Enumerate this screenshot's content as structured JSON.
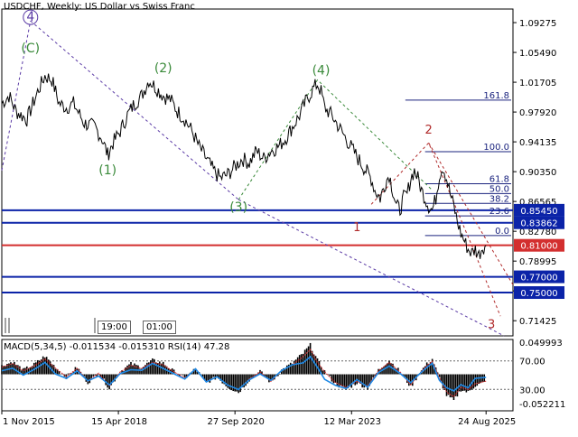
{
  "window": {
    "title": "USDCHF, Weekly:  US Dollar vs Swiss Franc",
    "time_tags": [
      "19:00",
      "01:00"
    ]
  },
  "colors": {
    "price": "#000000",
    "wave_primary": "#5a3aa5",
    "wave_minor": "#3a8a3a",
    "wave_current": "#b02a2a",
    "fib": "#1a237e",
    "support": "#0b23a8",
    "current_level": "#d32f2f",
    "macd_hist": "#000000",
    "macd_signal": "#d32f2f",
    "rsi": "#1e88e5",
    "tag_bg": "#0b23a8",
    "tag_text": "#ffffff"
  },
  "chart_data": {
    "type": "line",
    "title": "USDCHF, Weekly:  US Dollar vs Swiss Franc",
    "price_axis": {
      "ticks": [
        "1.09275",
        "1.05490",
        "1.01705",
        "0.97920",
        "0.94135",
        "0.90350",
        "0.86565",
        "0.82780",
        "0.78995",
        "0.75210",
        "0.71425"
      ],
      "range": [
        0.695,
        1.11
      ]
    },
    "time_axis": {
      "ticks": [
        "1 Nov 2015",
        "15 Apr 2018",
        "27 Sep 2020",
        "12 Mar 2023",
        "24 Aug 2025"
      ]
    },
    "price_path": [
      [
        0,
        0.99
      ],
      [
        4,
        1.0
      ],
      [
        8,
        0.98
      ],
      [
        14,
        0.97
      ],
      [
        20,
        1.005
      ],
      [
        24,
        1.025
      ],
      [
        28,
        1.02
      ],
      [
        32,
        0.99
      ],
      [
        36,
        0.985
      ],
      [
        40,
        0.99
      ],
      [
        46,
        0.965
      ],
      [
        52,
        0.96
      ],
      [
        56,
        0.945
      ],
      [
        59,
        0.925
      ],
      [
        62,
        0.94
      ],
      [
        66,
        0.955
      ],
      [
        70,
        0.975
      ],
      [
        74,
        0.99
      ],
      [
        78,
        1.0
      ],
      [
        82,
        1.02
      ],
      [
        86,
        1.01
      ],
      [
        90,
        1.0
      ],
      [
        94,
        0.995
      ],
      [
        98,
        0.98
      ],
      [
        102,
        0.97
      ],
      [
        106,
        0.955
      ],
      [
        110,
        0.935
      ],
      [
        114,
        0.92
      ],
      [
        118,
        0.905
      ],
      [
        122,
        0.895
      ],
      [
        126,
        0.9
      ],
      [
        130,
        0.91
      ],
      [
        134,
        0.92
      ],
      [
        138,
        0.915
      ],
      [
        142,
        0.93
      ],
      [
        146,
        0.92
      ],
      [
        150,
        0.93
      ],
      [
        154,
        0.935
      ],
      [
        158,
        0.945
      ],
      [
        162,
        0.96
      ],
      [
        166,
        0.975
      ],
      [
        170,
        0.995
      ],
      [
        174,
        1.01
      ],
      [
        176,
        1.015
      ],
      [
        178,
        1.005
      ],
      [
        180,
        0.985
      ],
      [
        184,
        0.975
      ],
      [
        188,
        0.96
      ],
      [
        192,
        0.945
      ],
      [
        196,
        0.93
      ],
      [
        200,
        0.915
      ],
      [
        203,
        0.905
      ],
      [
        206,
        0.895
      ],
      [
        208,
        0.88
      ],
      [
        211,
        0.87
      ],
      [
        214,
        0.89
      ],
      [
        216,
        0.9
      ],
      [
        218,
        0.88
      ],
      [
        220,
        0.86
      ],
      [
        222,
        0.855
      ],
      [
        224,
        0.87
      ],
      [
        226,
        0.875
      ],
      [
        228,
        0.895
      ],
      [
        230,
        0.905
      ],
      [
        232,
        0.895
      ],
      [
        234,
        0.88
      ],
      [
        236,
        0.87
      ],
      [
        238,
        0.86
      ],
      [
        240,
        0.855
      ],
      [
        242,
        0.87
      ],
      [
        244,
        0.9
      ],
      [
        246,
        0.91
      ],
      [
        248,
        0.895
      ],
      [
        250,
        0.875
      ],
      [
        252,
        0.86
      ],
      [
        254,
        0.84
      ],
      [
        256,
        0.825
      ],
      [
        258,
        0.815
      ],
      [
        260,
        0.805
      ],
      [
        262,
        0.8
      ],
      [
        264,
        0.805
      ],
      [
        266,
        0.798
      ],
      [
        268,
        0.808
      ],
      [
        270,
        0.81
      ]
    ],
    "wave_labels": [
      {
        "text": "4",
        "circled": true,
        "t": 16,
        "p": 1.095,
        "series": "primary"
      },
      {
        "text": "(C)",
        "t": 16,
        "p": 1.055,
        "series": "minor"
      },
      {
        "text": "(1)",
        "t": 59,
        "p": 0.9,
        "series": "minor"
      },
      {
        "text": "(2)",
        "t": 90,
        "p": 1.03,
        "series": "minor"
      },
      {
        "text": "(3)",
        "t": 132,
        "p": 0.853,
        "series": "minor"
      },
      {
        "text": "(4)",
        "t": 178,
        "p": 1.027,
        "series": "minor"
      },
      {
        "text": "1",
        "t": 198,
        "p": 0.828,
        "series": "current"
      },
      {
        "text": "2",
        "t": 238,
        "p": 0.952,
        "series": "current"
      },
      {
        "text": "3",
        "t": 273,
        "p": 0.705,
        "series": "current"
      }
    ],
    "fib_levels": [
      {
        "label": "161.8",
        "value": 0.9943
      },
      {
        "label": "100.0",
        "value": 0.9289
      },
      {
        "label": "61.8",
        "value": 0.8882
      },
      {
        "label": "50.0",
        "value": 0.8757
      },
      {
        "label": "38.2",
        "value": 0.8632
      },
      {
        "label": "23.6",
        "value": 0.8473
      },
      {
        "label": "0.0",
        "value": 0.8224
      }
    ],
    "levels": [
      {
        "label": "0.85450",
        "value": 0.8545,
        "kind": "support"
      },
      {
        "label": "0.83862",
        "value": 0.83862,
        "kind": "support"
      },
      {
        "label": "0.81000",
        "value": 0.81,
        "kind": "current"
      },
      {
        "label": "0.77000",
        "value": 0.77,
        "kind": "support"
      },
      {
        "label": "0.75000",
        "value": 0.75,
        "kind": "support"
      }
    ],
    "indicator": {
      "title": "MACD(5,34,5) -0.011534 -0.015310 RSI(14) 47.28",
      "macd": {
        "fast": 5,
        "slow": 34,
        "signal": 5,
        "main": -0.011534,
        "signal_value": -0.01531
      },
      "rsi": {
        "period": 14,
        "value": 47.28
      },
      "axis_labels": [
        "0.049993",
        "70.00",
        "30.00",
        "-0.052211"
      ],
      "rsi_levels": [
        70,
        30
      ],
      "rsi_path": [
        [
          0,
          55
        ],
        [
          6,
          62
        ],
        [
          12,
          48
        ],
        [
          18,
          58
        ],
        [
          24,
          66
        ],
        [
          30,
          52
        ],
        [
          36,
          45
        ],
        [
          42,
          58
        ],
        [
          48,
          40
        ],
        [
          54,
          50
        ],
        [
          60,
          35
        ],
        [
          66,
          52
        ],
        [
          72,
          60
        ],
        [
          78,
          55
        ],
        [
          84,
          64
        ],
        [
          90,
          60
        ],
        [
          96,
          50
        ],
        [
          102,
          45
        ],
        [
          108,
          58
        ],
        [
          114,
          42
        ],
        [
          120,
          48
        ],
        [
          126,
          38
        ],
        [
          132,
          30
        ],
        [
          138,
          44
        ],
        [
          144,
          52
        ],
        [
          150,
          40
        ],
        [
          156,
          55
        ],
        [
          162,
          62
        ],
        [
          168,
          70
        ],
        [
          172,
          74
        ],
        [
          176,
          58
        ],
        [
          180,
          46
        ],
        [
          186,
          38
        ],
        [
          192,
          34
        ],
        [
          198,
          42
        ],
        [
          204,
          36
        ],
        [
          210,
          54
        ],
        [
          216,
          64
        ],
        [
          222,
          50
        ],
        [
          228,
          38
        ],
        [
          232,
          52
        ],
        [
          236,
          60
        ],
        [
          240,
          68
        ],
        [
          244,
          42
        ],
        [
          248,
          32
        ],
        [
          252,
          28
        ],
        [
          256,
          38
        ],
        [
          260,
          35
        ],
        [
          264,
          44
        ],
        [
          270,
          47
        ]
      ],
      "macd_hist": [
        [
          0,
          0.012
        ],
        [
          6,
          0.018
        ],
        [
          12,
          0.006
        ],
        [
          18,
          0.014
        ],
        [
          24,
          0.026
        ],
        [
          30,
          0.01
        ],
        [
          36,
          -0.004
        ],
        [
          42,
          0.01
        ],
        [
          48,
          -0.012
        ],
        [
          54,
          0.002
        ],
        [
          60,
          -0.02
        ],
        [
          66,
          0.004
        ],
        [
          72,
          0.015
        ],
        [
          78,
          0.01
        ],
        [
          84,
          0.02
        ],
        [
          90,
          0.016
        ],
        [
          96,
          0.004
        ],
        [
          102,
          -0.006
        ],
        [
          108,
          0.008
        ],
        [
          114,
          -0.012
        ],
        [
          120,
          -0.004
        ],
        [
          126,
          -0.018
        ],
        [
          132,
          -0.026
        ],
        [
          138,
          -0.008
        ],
        [
          144,
          0.004
        ],
        [
          150,
          -0.012
        ],
        [
          156,
          0.006
        ],
        [
          162,
          0.016
        ],
        [
          168,
          0.03
        ],
        [
          172,
          0.042
        ],
        [
          176,
          0.02
        ],
        [
          180,
          0.004
        ],
        [
          186,
          -0.014
        ],
        [
          192,
          -0.022
        ],
        [
          198,
          -0.012
        ],
        [
          204,
          -0.02
        ],
        [
          210,
          0.006
        ],
        [
          216,
          0.02
        ],
        [
          222,
          0.004
        ],
        [
          228,
          -0.018
        ],
        [
          232,
          -0.002
        ],
        [
          236,
          0.012
        ],
        [
          240,
          0.022
        ],
        [
          244,
          -0.006
        ],
        [
          248,
          -0.03
        ],
        [
          252,
          -0.038
        ],
        [
          256,
          -0.022
        ],
        [
          260,
          -0.026
        ],
        [
          264,
          -0.016
        ],
        [
          270,
          -0.0115
        ]
      ]
    }
  }
}
